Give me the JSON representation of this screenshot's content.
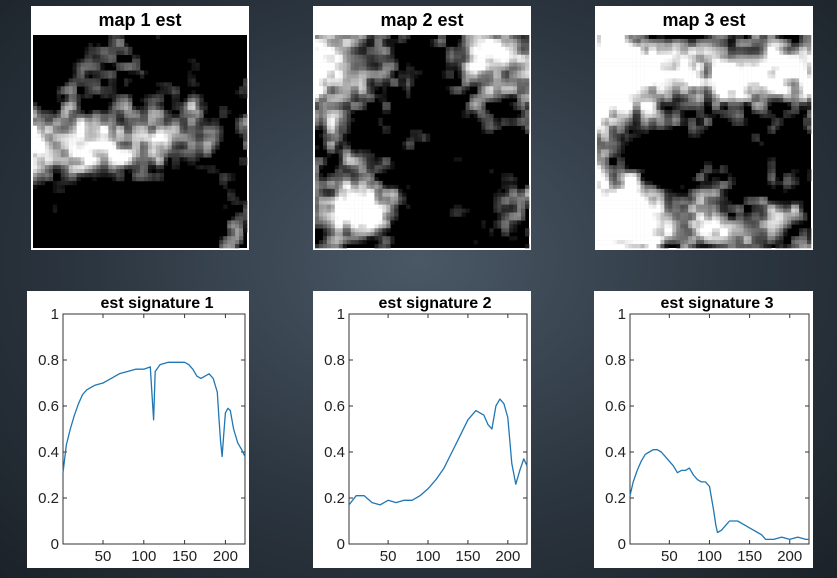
{
  "maps": [
    {
      "title": "map 1 est",
      "seed": 11,
      "pattern": "map1"
    },
    {
      "title": "map 2 est",
      "seed": 23,
      "pattern": "map2"
    },
    {
      "title": "map 3 est",
      "seed": 37,
      "pattern": "map3"
    }
  ],
  "chart_data": [
    {
      "type": "line",
      "title": "est signature 1",
      "xlabel": "",
      "ylabel": "",
      "xlim": [
        1,
        224
      ],
      "ylim": [
        0,
        1
      ],
      "xticks": [
        50,
        100,
        150,
        200
      ],
      "yticks": [
        "0",
        "0.2",
        "0.4",
        "0.6",
        "0.8",
        "1"
      ],
      "grid": false,
      "color": "#1f77b4",
      "series": [
        {
          "x": [
            1,
            5,
            10,
            15,
            20,
            25,
            30,
            35,
            40,
            50,
            60,
            70,
            80,
            90,
            100,
            108,
            110,
            112,
            114,
            120,
            130,
            140,
            150,
            155,
            160,
            165,
            170,
            180,
            185,
            190,
            192,
            194,
            196,
            198,
            200,
            203,
            206,
            210,
            215,
            220,
            224
          ],
          "values": [
            0.31,
            0.43,
            0.5,
            0.56,
            0.61,
            0.65,
            0.67,
            0.68,
            0.69,
            0.7,
            0.72,
            0.74,
            0.75,
            0.76,
            0.76,
            0.77,
            0.65,
            0.54,
            0.75,
            0.78,
            0.79,
            0.79,
            0.79,
            0.78,
            0.76,
            0.73,
            0.72,
            0.74,
            0.72,
            0.66,
            0.55,
            0.45,
            0.38,
            0.48,
            0.57,
            0.59,
            0.58,
            0.5,
            0.44,
            0.41,
            0.38
          ]
        }
      ]
    },
    {
      "type": "line",
      "title": "est signature 2",
      "xlabel": "",
      "ylabel": "",
      "xlim": [
        1,
        224
      ],
      "ylim": [
        0,
        1
      ],
      "xticks": [
        50,
        100,
        150,
        200
      ],
      "yticks": [
        "0",
        "0.2",
        "0.4",
        "0.6",
        "0.8",
        "1"
      ],
      "grid": false,
      "color": "#1f77b4",
      "series": [
        {
          "x": [
            1,
            10,
            20,
            30,
            40,
            50,
            60,
            70,
            80,
            90,
            100,
            110,
            120,
            130,
            140,
            150,
            160,
            170,
            175,
            180,
            185,
            190,
            195,
            200,
            205,
            210,
            215,
            220,
            224
          ],
          "values": [
            0.17,
            0.21,
            0.21,
            0.18,
            0.17,
            0.19,
            0.18,
            0.19,
            0.19,
            0.21,
            0.24,
            0.28,
            0.33,
            0.4,
            0.47,
            0.54,
            0.58,
            0.56,
            0.52,
            0.5,
            0.6,
            0.63,
            0.61,
            0.55,
            0.35,
            0.26,
            0.32,
            0.37,
            0.34
          ]
        }
      ]
    },
    {
      "type": "line",
      "title": "est signature 3",
      "xlabel": "",
      "ylabel": "",
      "xlim": [
        1,
        224
      ],
      "ylim": [
        0,
        1
      ],
      "xticks": [
        50,
        100,
        150,
        200
      ],
      "yticks": [
        "0",
        "0.2",
        "0.4",
        "0.6",
        "0.8",
        "1"
      ],
      "grid": false,
      "color": "#1f77b4",
      "series": [
        {
          "x": [
            1,
            5,
            10,
            15,
            20,
            25,
            30,
            35,
            40,
            45,
            50,
            55,
            60,
            65,
            70,
            75,
            80,
            85,
            90,
            95,
            100,
            105,
            108,
            110,
            115,
            120,
            125,
            130,
            135,
            140,
            145,
            150,
            155,
            160,
            165,
            170,
            180,
            190,
            200,
            210,
            220,
            224
          ],
          "values": [
            0.21,
            0.27,
            0.32,
            0.36,
            0.39,
            0.4,
            0.41,
            0.41,
            0.4,
            0.38,
            0.36,
            0.34,
            0.31,
            0.32,
            0.32,
            0.33,
            0.3,
            0.28,
            0.27,
            0.27,
            0.25,
            0.15,
            0.08,
            0.05,
            0.06,
            0.08,
            0.1,
            0.1,
            0.1,
            0.09,
            0.08,
            0.07,
            0.06,
            0.05,
            0.04,
            0.02,
            0.02,
            0.03,
            0.02,
            0.03,
            0.02,
            0.02
          ]
        }
      ]
    }
  ]
}
